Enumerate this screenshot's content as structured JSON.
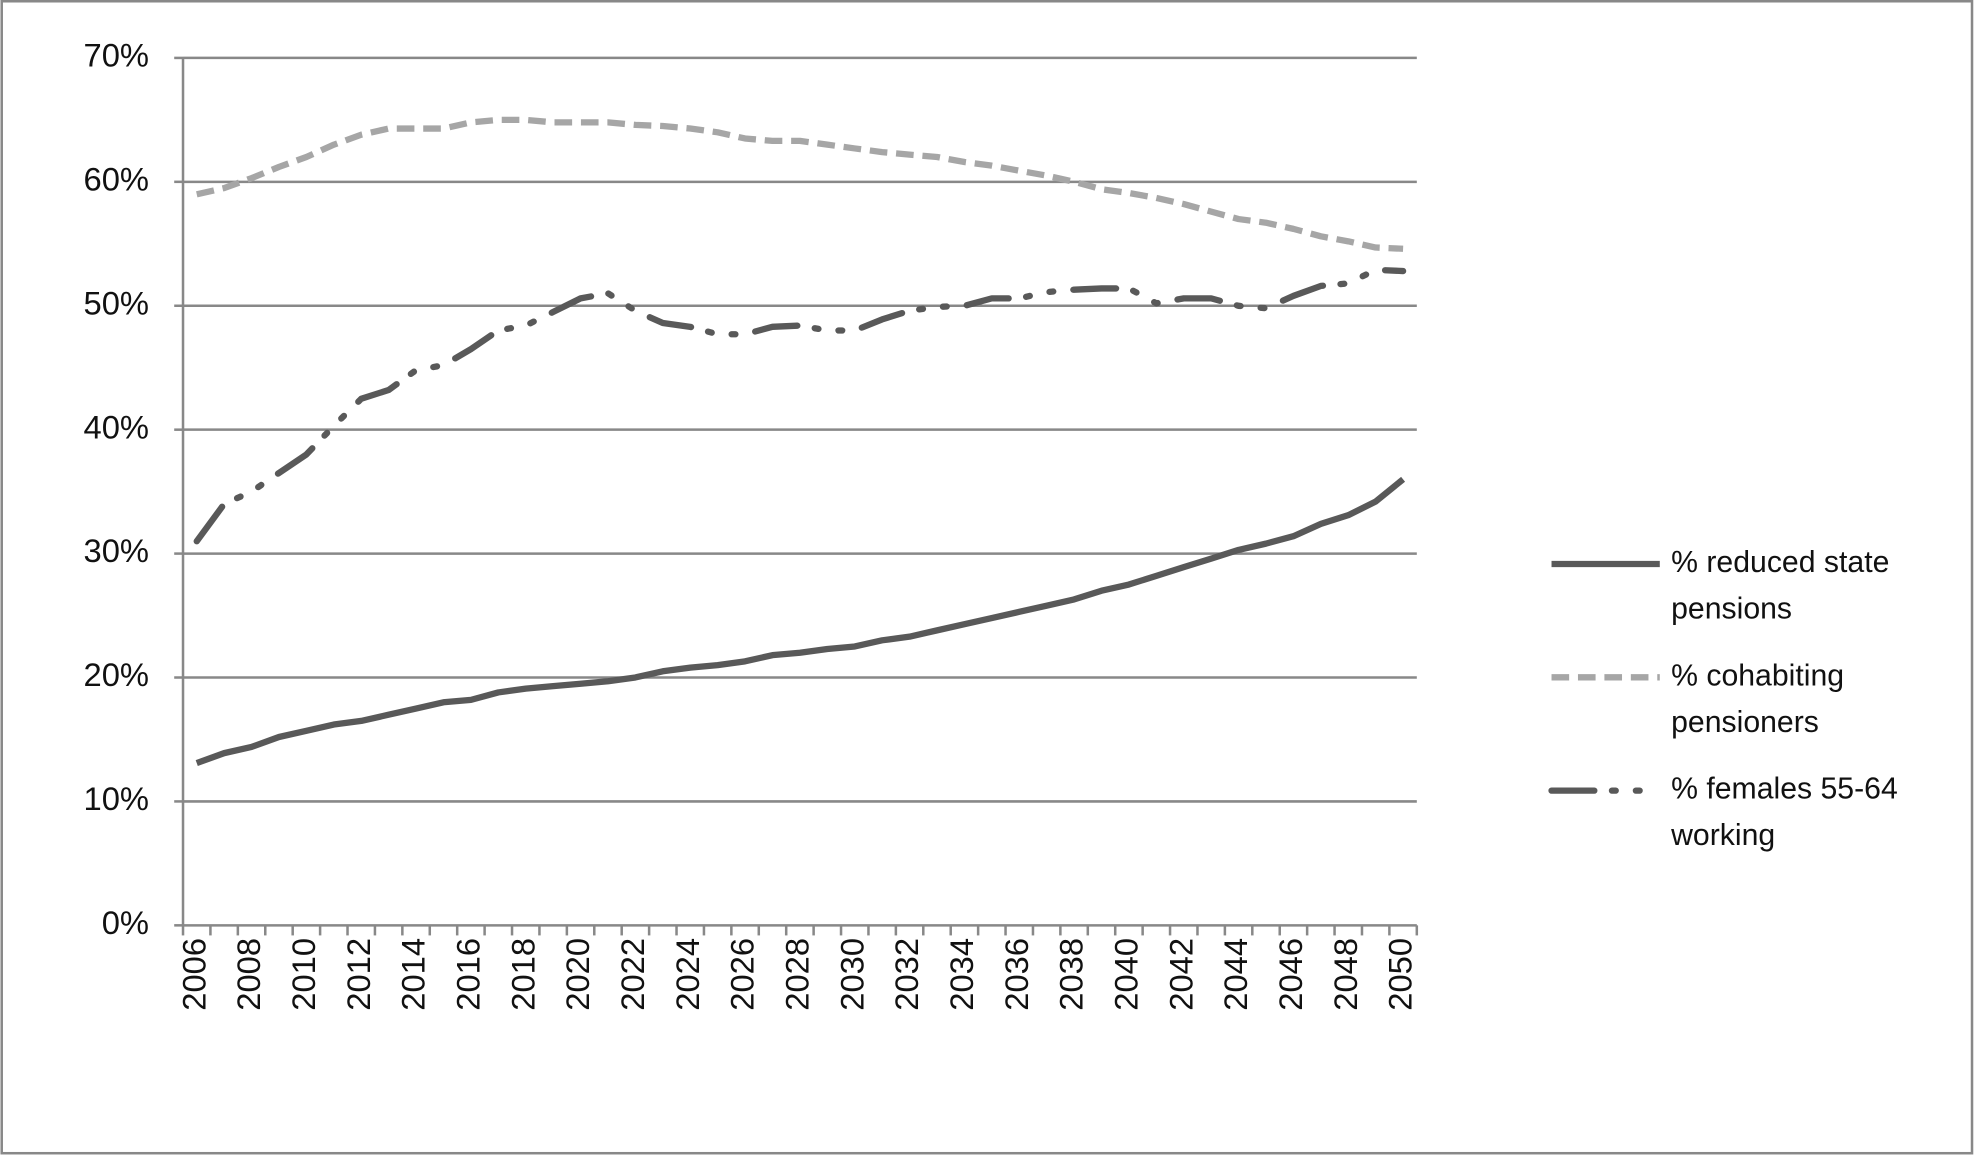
{
  "chart_data": {
    "type": "line",
    "categories": [
      "2006",
      null,
      "2008",
      null,
      "2010",
      null,
      "2012",
      null,
      "2014",
      null,
      "2016",
      null,
      "2018",
      null,
      "2020",
      null,
      "2022",
      null,
      "2024",
      null,
      "2026",
      null,
      "2028",
      null,
      "2030",
      null,
      "2032",
      null,
      "2034",
      null,
      "2036",
      null,
      "2038",
      null,
      "2040",
      null,
      "2042",
      null,
      "2044",
      null,
      "2046",
      null,
      "2048",
      null,
      "2050"
    ],
    "series": [
      {
        "name": "% reduced state pensions",
        "color": "#595959",
        "dash": "solid",
        "values": [
          13.1,
          13.9,
          14.4,
          15.2,
          15.7,
          16.2,
          16.5,
          17.0,
          17.5,
          18.0,
          18.2,
          18.8,
          19.1,
          19.3,
          19.5,
          19.7,
          20.0,
          20.5,
          20.8,
          21.0,
          21.3,
          21.8,
          22.0,
          22.3,
          22.5,
          23.0,
          23.3,
          23.8,
          24.3,
          24.8,
          25.3,
          25.8,
          26.3,
          27.0,
          27.5,
          28.2,
          28.9,
          29.6,
          30.3,
          30.8,
          31.4,
          32.4,
          33.1,
          34.2,
          36.0
        ]
      },
      {
        "name": "% cohabiting pensioners",
        "color": "#a6a6a6",
        "dash": "dashed",
        "values": [
          59.0,
          59.5,
          60.3,
          61.2,
          62.0,
          63.0,
          63.8,
          64.3,
          64.3,
          64.3,
          64.8,
          65.0,
          65.0,
          64.8,
          64.8,
          64.8,
          64.6,
          64.5,
          64.3,
          64.0,
          63.5,
          63.3,
          63.3,
          63.0,
          62.7,
          62.4,
          62.2,
          62.0,
          61.6,
          61.3,
          60.9,
          60.5,
          60.0,
          59.4,
          59.1,
          58.7,
          58.2,
          57.6,
          57.0,
          56.7,
          56.2,
          55.6,
          55.2,
          54.7,
          54.6
        ]
      },
      {
        "name": "% females 55-64 working",
        "color": "#595959",
        "dash": "dash-dot-dot",
        "values": [
          31.0,
          34.0,
          35.0,
          36.5,
          38.0,
          40.3,
          42.5,
          43.2,
          44.8,
          45.2,
          46.5,
          48.0,
          48.4,
          49.5,
          50.6,
          51.0,
          49.6,
          48.6,
          48.3,
          47.7,
          47.7,
          48.3,
          48.4,
          48.0,
          48.0,
          48.9,
          49.6,
          49.9,
          50.0,
          50.6,
          50.6,
          51.1,
          51.3,
          51.4,
          51.4,
          50.2,
          50.6,
          50.6,
          50.0,
          49.8,
          50.8,
          51.6,
          51.8,
          52.9,
          52.8
        ]
      }
    ],
    "ylim": [
      0,
      70
    ],
    "yticks": [
      {
        "value": 0,
        "label": "0%"
      },
      {
        "value": 10,
        "label": "10%"
      },
      {
        "value": 20,
        "label": "20%"
      },
      {
        "value": 30,
        "label": "30%"
      },
      {
        "value": 40,
        "label": "40%"
      },
      {
        "value": 50,
        "label": "50%"
      },
      {
        "value": 60,
        "label": "60%"
      },
      {
        "value": 70,
        "label": "70%"
      }
    ],
    "grid": true,
    "legend": "right"
  }
}
